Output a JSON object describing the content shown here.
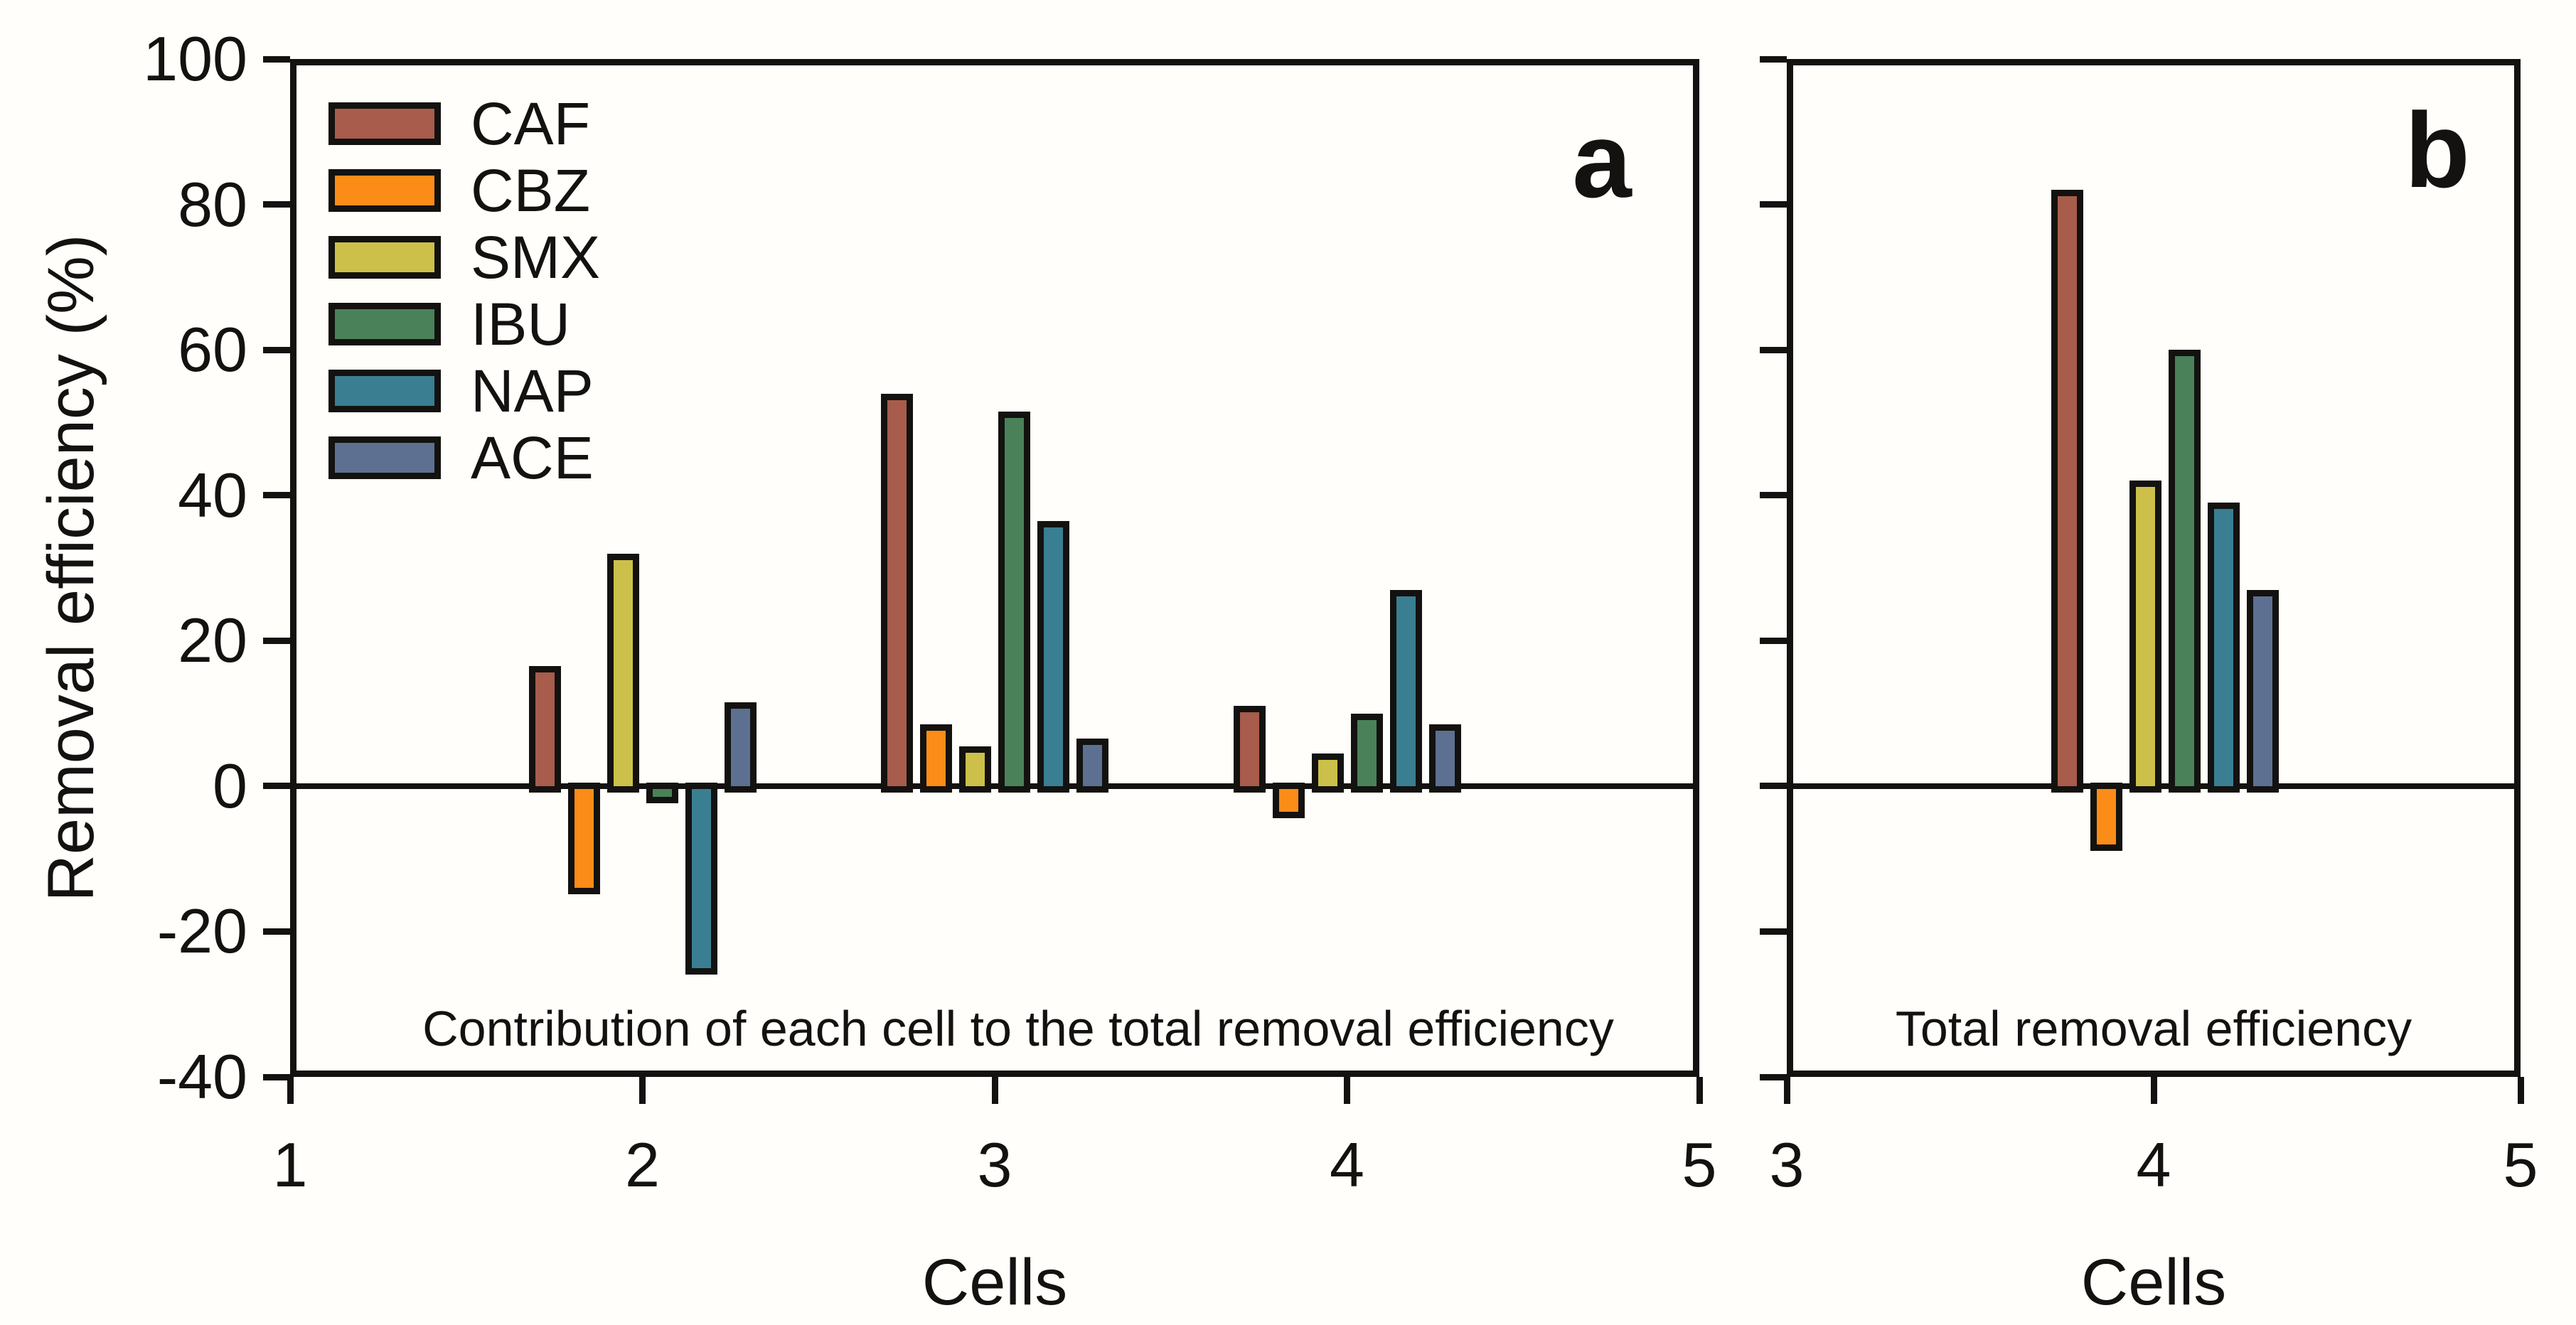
{
  "figure": {
    "y_axis": {
      "label": "Removal efficiency (%)",
      "min": -40,
      "max": 100,
      "tick_step": 20,
      "ticks": [
        100,
        80,
        60,
        40,
        20,
        0,
        -20,
        -40
      ]
    },
    "panels": [
      {
        "letter": "a",
        "x_label": "Cells",
        "x_ticks": [
          1,
          2,
          3,
          4,
          5
        ]
      },
      {
        "letter": "b",
        "x_label": "Cells",
        "x_ticks": [
          3,
          4,
          5
        ]
      }
    ],
    "ink_color": "#131210",
    "background_color": "#fffefb"
  },
  "legend": {
    "entries": [
      {
        "label": "CAF",
        "color": "#a85c4b"
      },
      {
        "label": "CBZ",
        "color": "#fb8c17"
      },
      {
        "label": "SMX",
        "color": "#ccc04a"
      },
      {
        "label": "IBU",
        "color": "#4a8159"
      },
      {
        "label": "NAP",
        "color": "#3a7e92"
      },
      {
        "label": "ACE",
        "color": "#5d7092"
      }
    ]
  },
  "chart_data": [
    {
      "type": "bar",
      "panel": "a",
      "title": "Contribution of each cell to the total removal efficiency",
      "xlabel": "Cells",
      "ylabel": "Removal efficiency (%)",
      "ylim": [
        -40,
        100
      ],
      "x_ticks": [
        1,
        2,
        3,
        4,
        5
      ],
      "categories": [
        2,
        3,
        4
      ],
      "grid": false,
      "legend_position": "top-left",
      "series": [
        {
          "name": "CAF",
          "color": "#a85c4b",
          "values": [
            16.5,
            54,
            11
          ]
        },
        {
          "name": "CBZ",
          "color": "#fb8c17",
          "values": [
            -14.5,
            8.5,
            -4
          ]
        },
        {
          "name": "SMX",
          "color": "#ccc04a",
          "values": [
            32,
            5.5,
            4.5
          ]
        },
        {
          "name": "IBU",
          "color": "#4a8159",
          "values": [
            -2,
            51.5,
            10
          ]
        },
        {
          "name": "NAP",
          "color": "#3a7e92",
          "values": [
            -25.5,
            36.5,
            27
          ]
        },
        {
          "name": "ACE",
          "color": "#5d7092",
          "values": [
            11.5,
            6.5,
            8.5
          ]
        }
      ]
    },
    {
      "type": "bar",
      "panel": "b",
      "title": "Total removal efficiency",
      "xlabel": "Cells",
      "ylabel": "",
      "ylim": [
        -40,
        100
      ],
      "x_ticks": [
        3,
        4,
        5
      ],
      "categories": [
        4
      ],
      "grid": false,
      "series": [
        {
          "name": "CAF",
          "color": "#a85c4b",
          "values": [
            82
          ]
        },
        {
          "name": "CBZ",
          "color": "#fb8c17",
          "values": [
            -8.5
          ]
        },
        {
          "name": "SMX",
          "color": "#ccc04a",
          "values": [
            42
          ]
        },
        {
          "name": "IBU",
          "color": "#4a8159",
          "values": [
            60
          ]
        },
        {
          "name": "NAP",
          "color": "#3a7e92",
          "values": [
            39
          ]
        },
        {
          "name": "ACE",
          "color": "#5d7092",
          "values": [
            27
          ]
        }
      ]
    }
  ]
}
